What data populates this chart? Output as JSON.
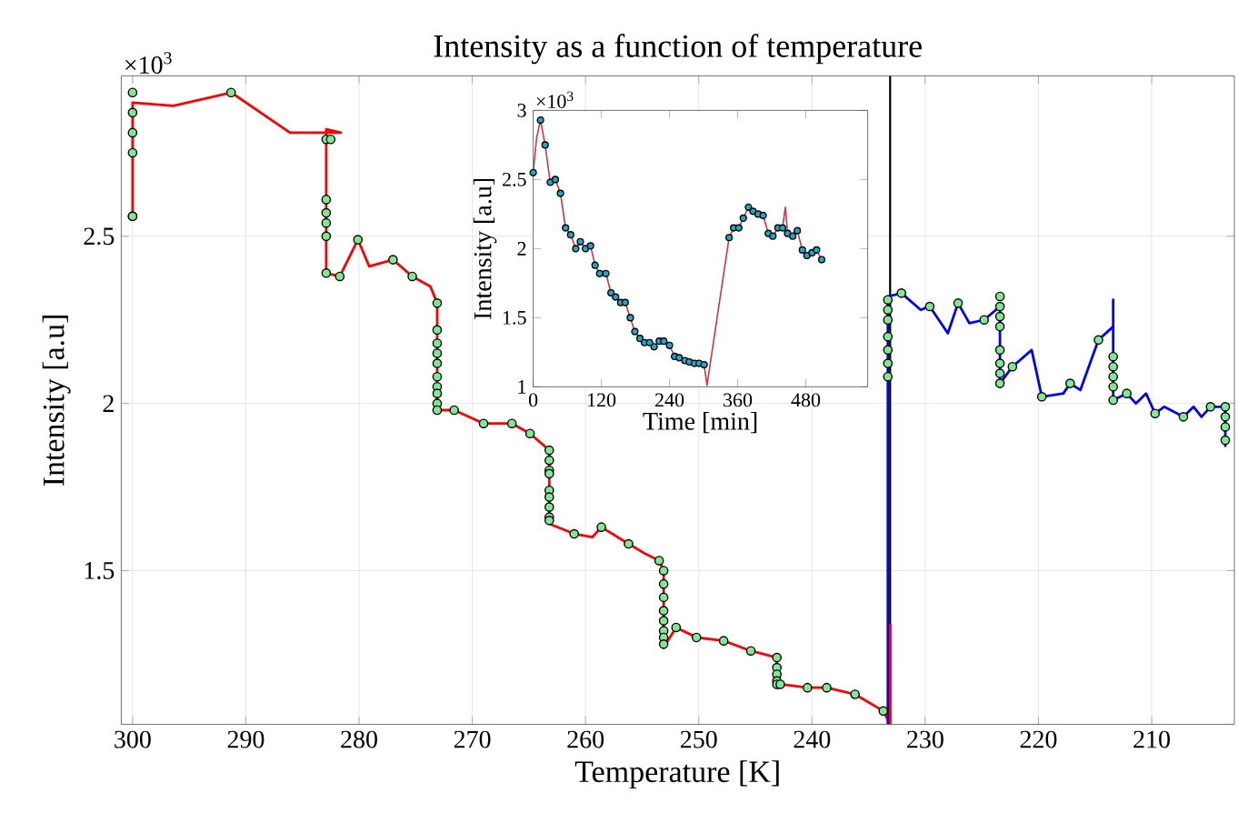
{
  "chart_data": [
    {
      "type": "line",
      "title": "Intensity as a function of temperature",
      "xlabel": "Temperature [K]",
      "ylabel": "Intensity [a.u]",
      "annotations": [
        "×10$^{3}$"
      ],
      "xlim": [
        301,
        202.7
      ],
      "ylim": [
        1.04,
        2.98
      ],
      "xticks": [
        300,
        290,
        280,
        270,
        260,
        250,
        240,
        230,
        220,
        210
      ],
      "yticks": [
        1.5,
        2,
        2.5
      ],
      "grid": true,
      "ref_lines": [
        {
          "axis": "x",
          "value": 233.1,
          "color": "#000000"
        }
      ],
      "series": [
        {
          "type": "line",
          "color": "#ff0000",
          "x": [
            300,
            300,
            296.4,
            291.3,
            286.1,
            281.6,
            282.9,
            282.9,
            281.7,
            280.1,
            279.1,
            277.0,
            275.3,
            273.7,
            273.1,
            273.1,
            271.6,
            269.0,
            266.5,
            264.9,
            263.2,
            263.2,
            261.0,
            259.4,
            258.6,
            256.2,
            254.7,
            253.5,
            253.1,
            253.1,
            252.0,
            250.2,
            247.8,
            245.4,
            243.1,
            243.1,
            242.8,
            240.4,
            238.7,
            236.2,
            233.7,
            233.1,
            233.1
          ],
          "values": [
            2.56,
            2.9,
            2.89,
            2.93,
            2.81,
            2.81,
            2.82,
            2.39,
            2.38,
            2.49,
            2.41,
            2.43,
            2.38,
            2.35,
            2.3,
            1.98,
            1.98,
            1.94,
            1.94,
            1.91,
            1.86,
            1.64,
            1.61,
            1.6,
            1.63,
            1.58,
            1.55,
            1.53,
            1.5,
            1.27,
            1.33,
            1.3,
            1.29,
            1.26,
            1.24,
            1.15,
            1.16,
            1.15,
            1.15,
            1.13,
            1.08,
            1.04,
            1.34
          ]
        },
        {
          "type": "line",
          "color": "#0000ff",
          "x": [
            233.3,
            233.3,
            232.1,
            230.4,
            229.6,
            228.0,
            227.1,
            226.1,
            224.8,
            223.4,
            223.4,
            222.3,
            220.6,
            219.7,
            217.8,
            217.2,
            216.3,
            214.7,
            213.4,
            213.4,
            213.4,
            212.2,
            211.4,
            210.5,
            209.7,
            208.9,
            207.2,
            206.3,
            205.6,
            204.8,
            203.5,
            203.5
          ],
          "values": [
            1.04,
            2.32,
            2.33,
            2.28,
            2.29,
            2.21,
            2.3,
            2.24,
            2.25,
            2.29,
            2.06,
            2.11,
            2.16,
            2.02,
            2.03,
            2.06,
            2.04,
            2.19,
            2.23,
            2.31,
            2.01,
            2.03,
            2.0,
            2.03,
            1.97,
            1.99,
            1.96,
            1.99,
            1.96,
            1.99,
            1.99,
            1.87
          ]
        },
        {
          "type": "scatter",
          "color": "#80e890",
          "x": [
            300,
            300,
            300,
            300,
            300,
            300,
            291.3,
            282.9,
            282.5,
            282.9,
            282.9,
            282.9,
            282.9,
            282.9,
            281.7,
            280.1,
            277.0,
            275.3,
            273.1,
            273.1,
            273.1,
            273.1,
            273.1,
            273.1,
            273.1,
            273.1,
            273.1,
            273.1,
            271.6,
            269.0,
            266.5,
            264.9,
            263.2,
            263.2,
            263.2,
            263.2,
            263.2,
            263.2,
            263.2,
            263.2,
            263.2,
            261.0,
            258.6,
            256.2,
            253.5,
            253.1,
            253.1,
            253.1,
            253.1,
            253.1,
            253.1,
            253.1,
            253.1,
            252.0,
            250.2,
            247.8,
            245.4,
            243.1,
            243.1,
            243.1,
            243.1,
            243.1,
            242.8,
            240.4,
            238.7,
            236.2,
            233.7,
            233.3,
            233.3,
            233.3,
            233.3,
            233.3,
            233.3,
            233.3,
            232.1,
            229.6,
            227.1,
            224.8,
            223.4,
            223.4,
            223.4,
            223.4,
            223.4,
            223.4,
            223.4,
            223.4,
            222.3,
            219.7,
            217.2,
            214.7,
            213.4,
            213.4,
            213.4,
            213.4,
            213.4,
            212.2,
            209.7,
            207.2,
            204.8,
            203.5,
            203.5,
            203.5,
            203.5
          ],
          "values": [
            2.56,
            2.56,
            2.75,
            2.81,
            2.87,
            2.93,
            2.93,
            2.79,
            2.79,
            2.61,
            2.57,
            2.54,
            2.5,
            2.39,
            2.38,
            2.49,
            2.43,
            2.38,
            2.3,
            2.22,
            2.18,
            2.15,
            2.12,
            2.08,
            2.05,
            2.03,
            2.0,
            1.98,
            1.98,
            1.94,
            1.94,
            1.91,
            1.86,
            1.83,
            1.8,
            1.79,
            1.74,
            1.72,
            1.69,
            1.66,
            1.65,
            1.61,
            1.63,
            1.58,
            1.53,
            1.5,
            1.46,
            1.42,
            1.38,
            1.35,
            1.32,
            1.3,
            1.28,
            1.33,
            1.3,
            1.29,
            1.26,
            1.24,
            1.21,
            1.19,
            1.17,
            1.16,
            1.16,
            1.15,
            1.15,
            1.13,
            1.08,
            2.31,
            2.28,
            2.25,
            2.2,
            2.16,
            2.12,
            2.08,
            2.33,
            2.29,
            2.3,
            2.25,
            2.32,
            2.29,
            2.26,
            2.23,
            2.16,
            2.12,
            2.09,
            2.06,
            2.11,
            2.02,
            2.06,
            2.19,
            2.14,
            2.11,
            2.08,
            2.05,
            2.01,
            2.03,
            1.97,
            1.96,
            1.99,
            1.99,
            1.96,
            1.93,
            1.89
          ]
        }
      ]
    },
    {
      "type": "line",
      "xlabel": "Time [min]",
      "ylabel": "Intensity [a.u]",
      "annotations": [
        "×10$^{3}$"
      ],
      "xlim": [
        0,
        589
      ],
      "ylim": [
        1,
        3
      ],
      "xticks": [
        0,
        120,
        240,
        360,
        480
      ],
      "yticks": [
        1,
        1.5,
        2,
        2.5,
        3
      ],
      "series": [
        {
          "type": "line",
          "color": "#c8374a",
          "x": [
            0,
            6,
            12.8,
            21,
            30,
            39,
            48,
            57,
            66,
            75,
            83,
            92,
            101,
            109,
            117,
            128,
            137,
            145,
            154,
            162,
            171,
            179,
            188,
            196,
            205,
            213,
            222,
            230,
            240,
            249,
            257,
            267,
            275,
            284,
            292,
            301,
            306,
            345,
            353,
            362,
            370,
            379,
            387,
            396,
            405,
            414,
            422,
            431,
            439,
            444,
            448,
            457,
            465,
            474,
            482,
            491,
            499,
            508
          ],
          "values": [
            2.55,
            2.8,
            2.93,
            2.75,
            2.48,
            2.5,
            2.4,
            2.15,
            2.1,
            2.0,
            2.05,
            2.0,
            2.02,
            1.88,
            1.82,
            1.82,
            1.68,
            1.65,
            1.61,
            1.61,
            1.5,
            1.4,
            1.35,
            1.32,
            1.32,
            1.29,
            1.33,
            1.33,
            1.3,
            1.22,
            1.21,
            1.19,
            1.18,
            1.17,
            1.17,
            1.16,
            1.01,
            2.08,
            2.15,
            2.15,
            2.22,
            2.3,
            2.27,
            2.25,
            2.24,
            2.11,
            2.09,
            2.15,
            2.15,
            2.3,
            2.11,
            2.09,
            2.13,
            1.99,
            1.95,
            1.97,
            1.99,
            1.92
          ]
        },
        {
          "type": "scatter",
          "color": "#1fa8c8",
          "x": [
            0,
            12.8,
            21,
            30,
            39,
            48,
            57,
            66,
            75,
            83,
            92,
            101,
            109,
            117,
            128,
            137,
            145,
            154,
            162,
            171,
            179,
            188,
            196,
            205,
            213,
            222,
            230,
            240,
            249,
            257,
            267,
            275,
            284,
            292,
            301,
            345,
            353,
            362,
            370,
            379,
            387,
            396,
            405,
            414,
            422,
            431,
            439,
            448,
            457,
            465,
            474,
            482,
            491,
            499,
            508
          ],
          "values": [
            2.55,
            2.93,
            2.75,
            2.48,
            2.5,
            2.4,
            2.15,
            2.1,
            2.0,
            2.05,
            2.0,
            2.02,
            1.88,
            1.82,
            1.82,
            1.68,
            1.65,
            1.61,
            1.61,
            1.5,
            1.4,
            1.35,
            1.32,
            1.32,
            1.29,
            1.33,
            1.33,
            1.3,
            1.22,
            1.21,
            1.19,
            1.18,
            1.17,
            1.17,
            1.16,
            2.08,
            2.15,
            2.15,
            2.22,
            2.3,
            2.27,
            2.25,
            2.24,
            2.11,
            2.09,
            2.15,
            2.15,
            2.11,
            2.09,
            2.13,
            1.99,
            1.95,
            1.97,
            1.99,
            1.92
          ]
        }
      ]
    }
  ]
}
